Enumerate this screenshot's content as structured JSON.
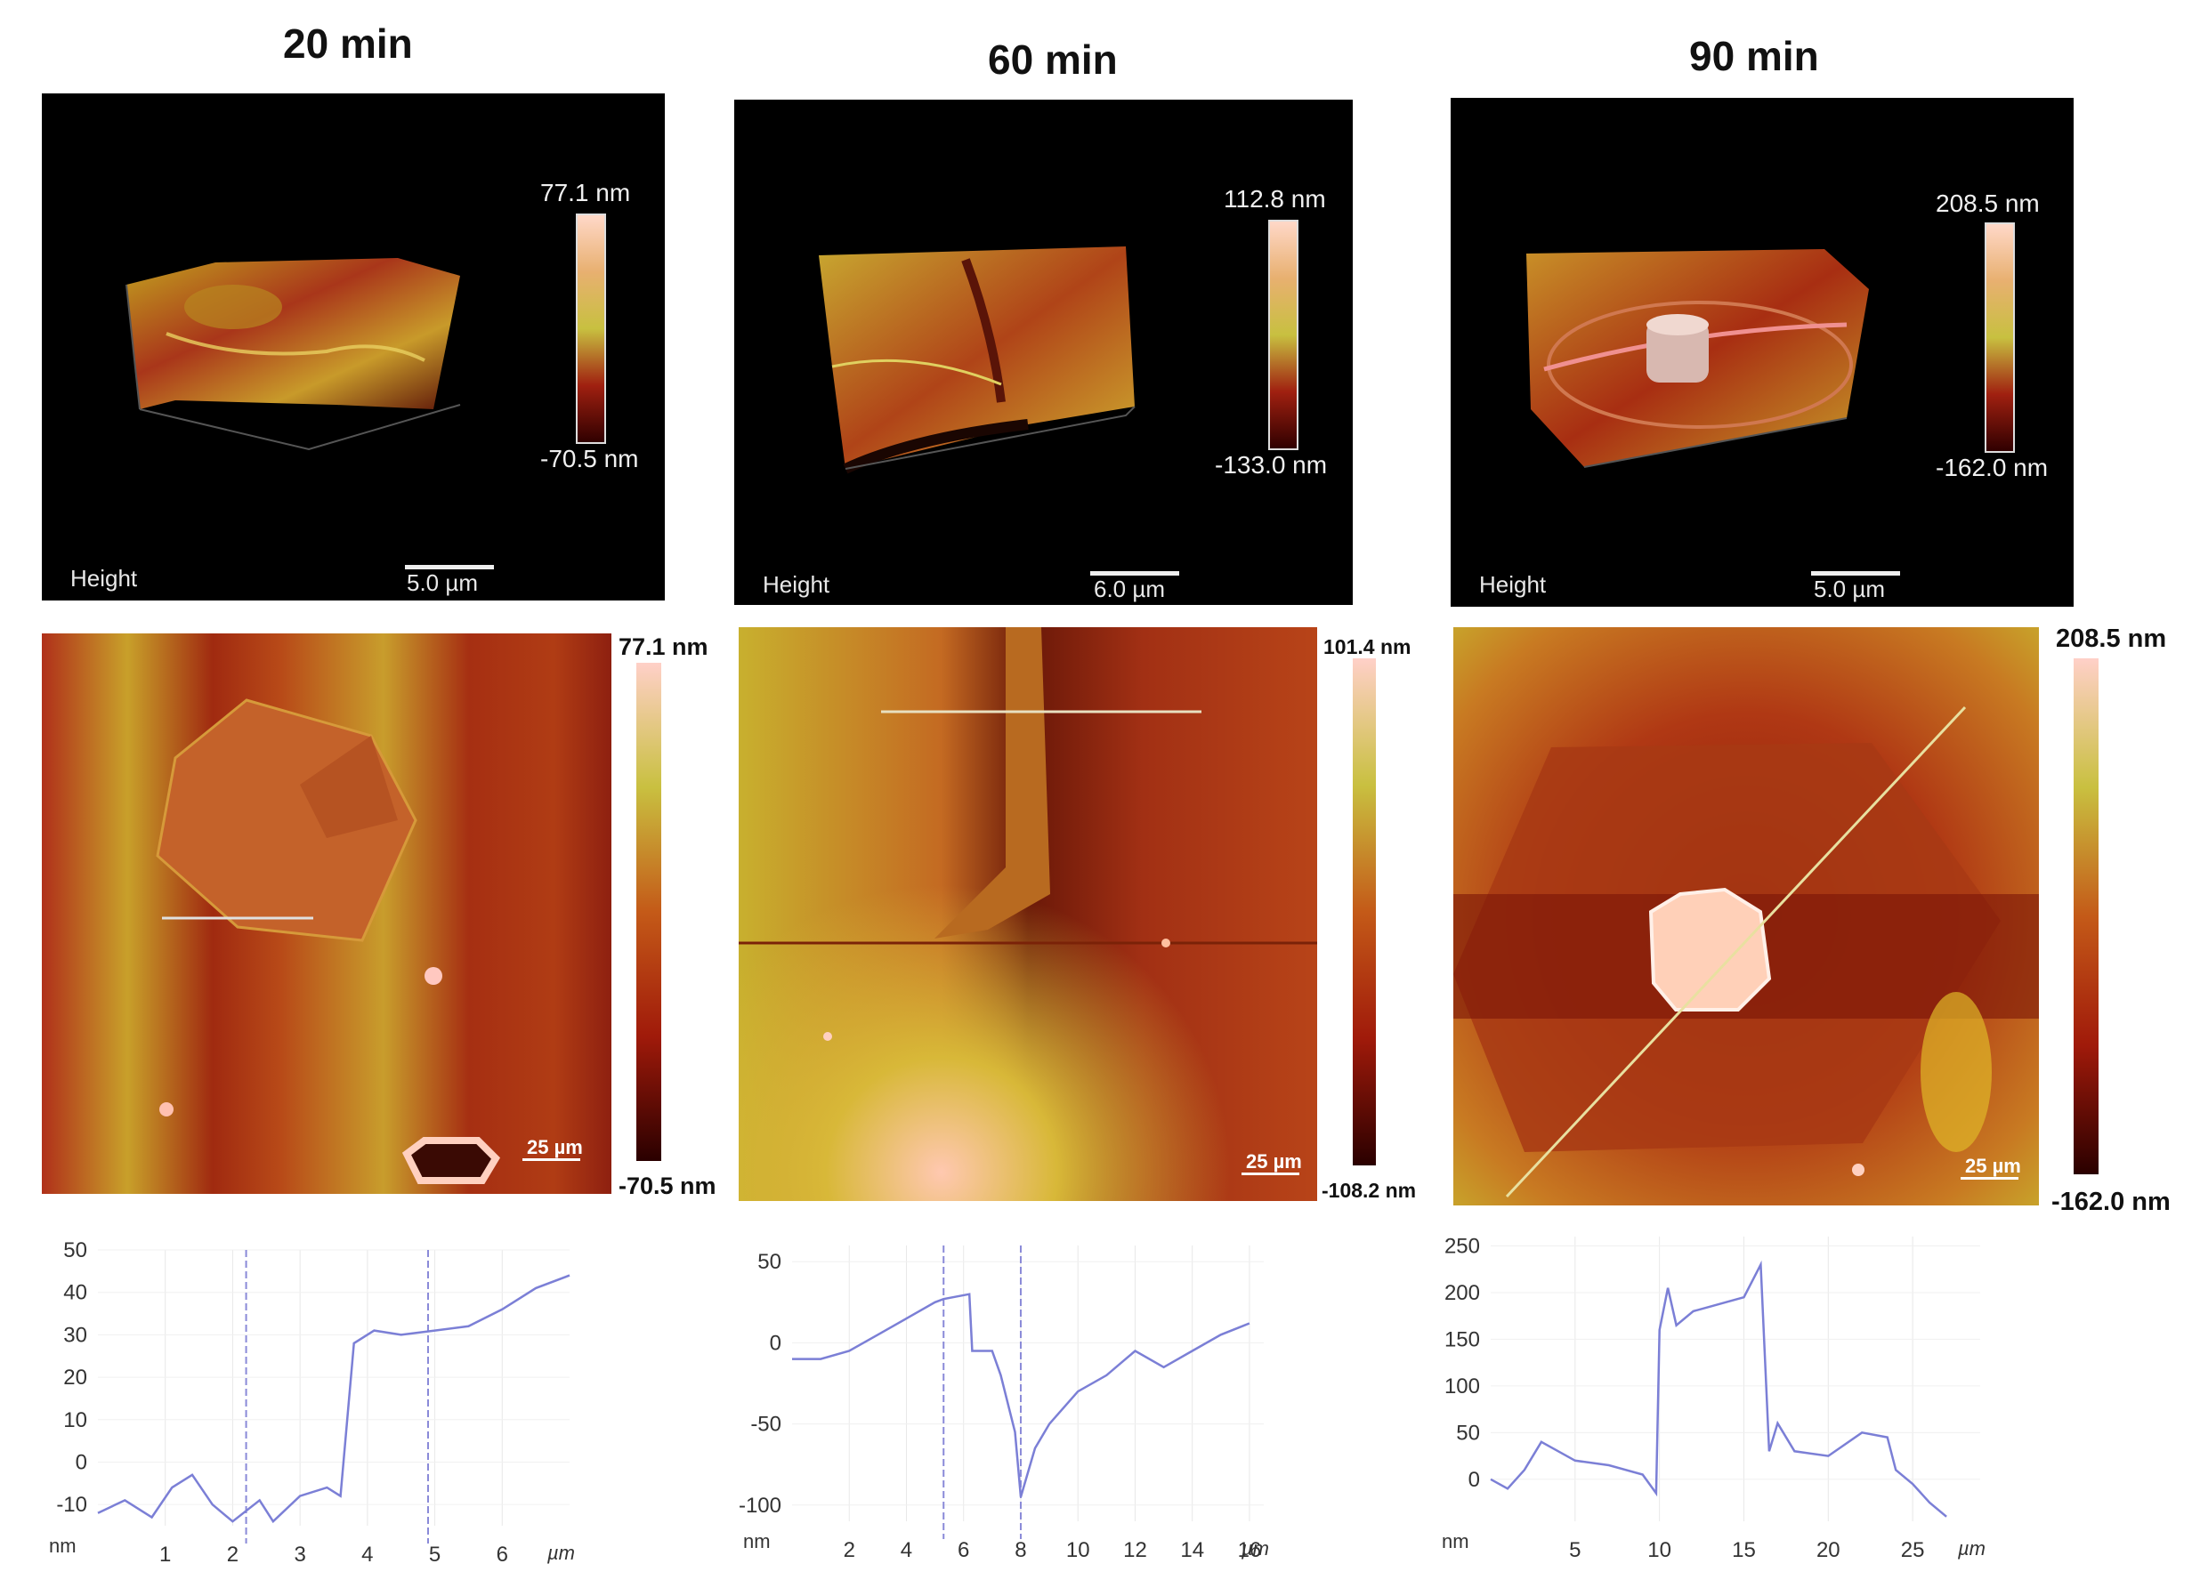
{
  "columns": [
    {
      "title": "20 min",
      "panel3d": {
        "label": "Height",
        "scale_bar": "5.0 µm",
        "cb_max": "77.1 nm",
        "cb_min": "-70.5 nm"
      },
      "map": {
        "cb_max": "77.1 nm",
        "cb_min": "-70.5 nm",
        "scale_bar": "25 µm"
      },
      "profile": {
        "x_unit": "µm",
        "y_unit": "nm",
        "xticks": [
          "1",
          "2",
          "3",
          "4",
          "5",
          "6"
        ],
        "yticks": [
          "50",
          "40",
          "30",
          "20",
          "10",
          "0",
          "-10"
        ],
        "markers": [
          2.2,
          4.9
        ]
      }
    },
    {
      "title": "60 min",
      "panel3d": {
        "label": "Height",
        "scale_bar": "6.0 µm",
        "cb_max": "112.8 nm",
        "cb_min": "-133.0 nm"
      },
      "map": {
        "cb_max": "101.4 nm",
        "cb_min": "-108.2 nm",
        "scale_bar": "25 µm"
      },
      "profile": {
        "x_unit": "µm",
        "y_unit": "nm",
        "xticks": [
          "2",
          "4",
          "6",
          "8",
          "10",
          "12",
          "14",
          "16"
        ],
        "yticks": [
          "50",
          "0",
          "-50",
          "-100"
        ],
        "markers": [
          5.3,
          8.0
        ]
      }
    },
    {
      "title": "90 min",
      "panel3d": {
        "label": "Height",
        "scale_bar": "5.0 µm",
        "cb_max": "208.5 nm",
        "cb_min": "-162.0 nm"
      },
      "map": {
        "cb_max": "208.5 nm",
        "cb_min": "-162.0 nm",
        "scale_bar": "25 µm"
      },
      "profile": {
        "x_unit": "µm",
        "y_unit": "nm",
        "xticks": [
          "5",
          "10",
          "15",
          "20",
          "25"
        ],
        "yticks": [
          "250",
          "200",
          "150",
          "100",
          "50",
          "0"
        ],
        "markers": []
      }
    }
  ],
  "colors": {
    "afm_low": "#3a0000",
    "afm_mid": "#b83a10",
    "afm_high": "#d7c42a",
    "afm_top": "#ffd8c8",
    "profile_line": "#7b7fd6",
    "marker": "#8a8ad8"
  }
}
